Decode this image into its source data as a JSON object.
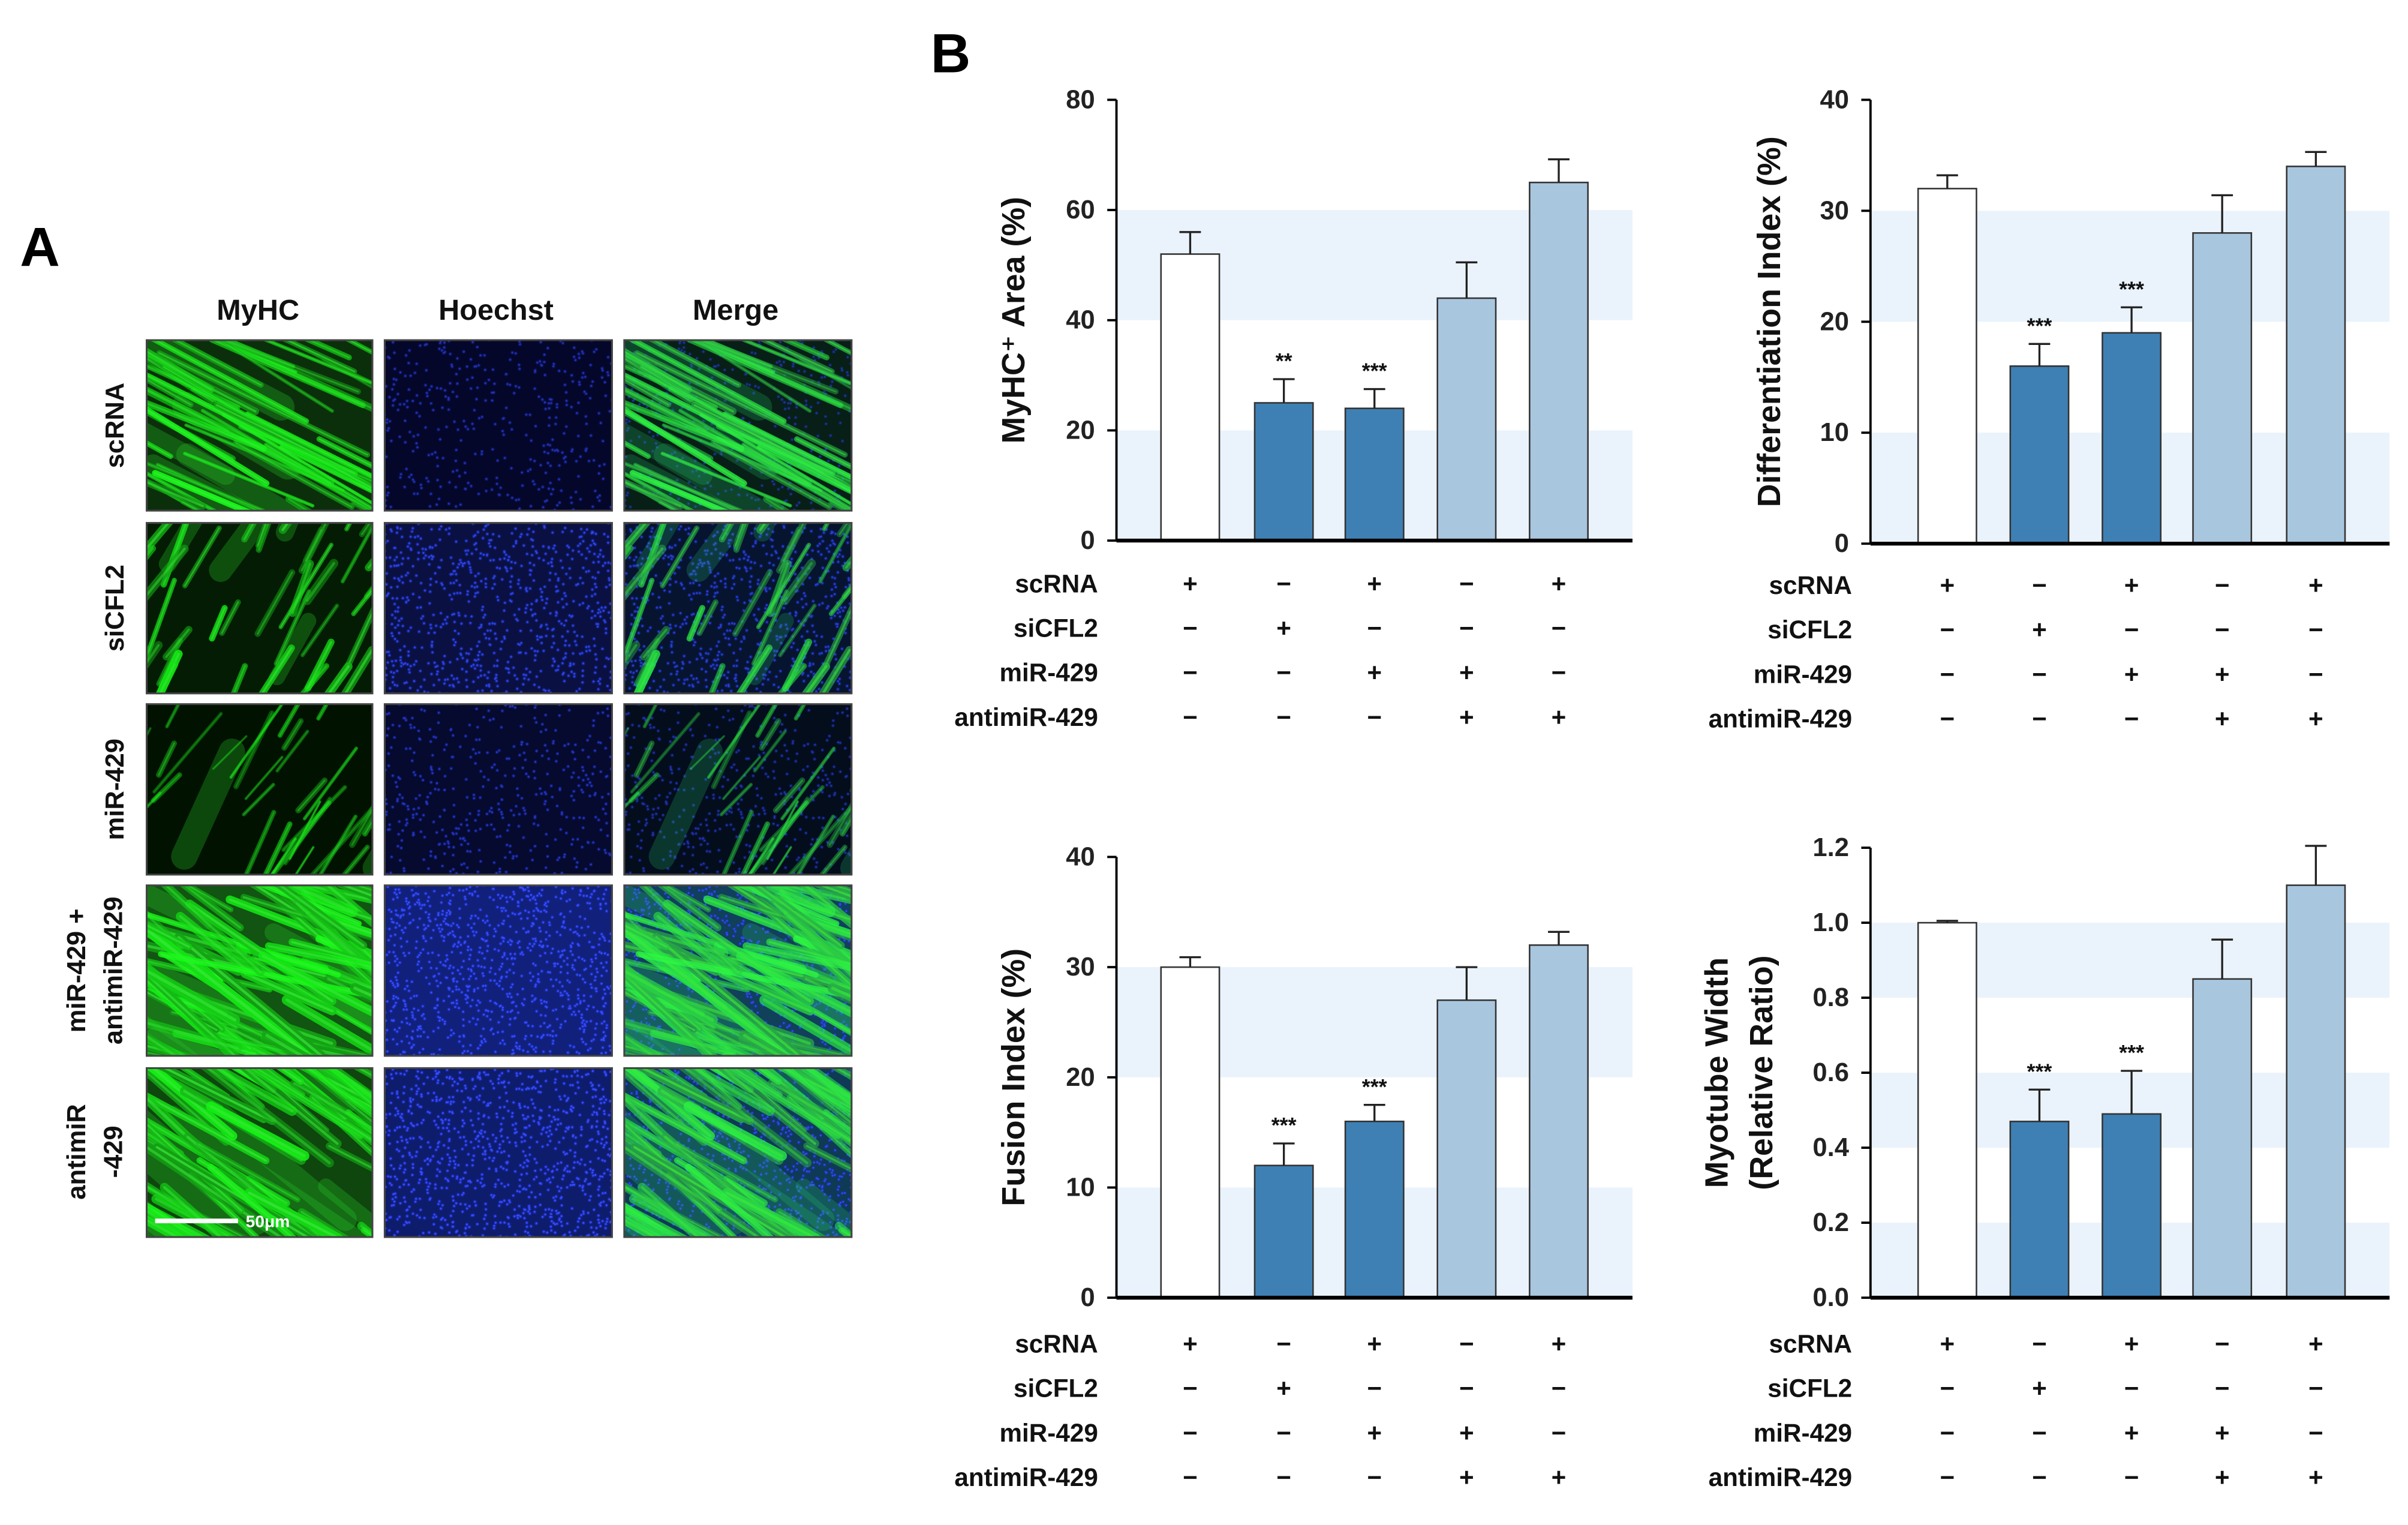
{
  "panel_a": {
    "label": "A",
    "columns": [
      "MyHC",
      "Hoechst",
      "Merge"
    ],
    "rows": [
      {
        "label_lines": [
          "scRNA"
        ]
      },
      {
        "label_lines": [
          "siCFL2"
        ]
      },
      {
        "label_lines": [
          "miR-429"
        ]
      },
      {
        "label_lines": [
          "miR-429 +",
          "antimiR-429"
        ]
      },
      {
        "label_lines": [
          "antimiR",
          "-429"
        ]
      }
    ],
    "scale_bar": "50μm",
    "channel_colors": {
      "MyHC": "#3BE83B",
      "Hoechst": "#3A50FF"
    }
  },
  "panel_b": {
    "label": "B"
  },
  "conditions": {
    "rows": [
      {
        "label": "scRNA",
        "signs": [
          "+",
          "−",
          "+",
          "−",
          "+"
        ]
      },
      {
        "label": "siCFL2",
        "signs": [
          "−",
          "+",
          "−",
          "−",
          "−"
        ]
      },
      {
        "label": "miR-429",
        "signs": [
          "−",
          "−",
          "+",
          "+",
          "−"
        ]
      },
      {
        "label": "antimiR-429",
        "signs": [
          "−",
          "−",
          "−",
          "+",
          "+"
        ]
      }
    ]
  },
  "colors": {
    "band": "#EAF3FB",
    "bar_outline": "#333333",
    "axis": "#000000"
  },
  "chart_data": [
    {
      "type": "bar",
      "ylabel": [
        "MyHC⁺ Area (%)"
      ],
      "ylim": [
        0,
        80
      ],
      "yticks": [
        0,
        20,
        40,
        60,
        80
      ],
      "ytick_labels": [
        "0",
        "20",
        "40",
        "60",
        "80"
      ],
      "values": [
        52,
        25,
        24,
        44,
        65
      ],
      "errors": [
        4,
        4.3,
        3.5,
        6.5,
        4.2
      ],
      "annotations": [
        "",
        "**",
        "***",
        "",
        ""
      ],
      "bar_colors": [
        "#FFFFFF",
        "#3E80B4",
        "#3E80B4",
        "#A9C6DF",
        "#A9C6DF"
      ],
      "shaded_bands": true
    },
    {
      "type": "bar",
      "ylabel": [
        "Differentiation Index (%)"
      ],
      "ylim": [
        0,
        40
      ],
      "yticks": [
        0,
        10,
        20,
        30,
        40
      ],
      "ytick_labels": [
        "0",
        "10",
        "20",
        "30",
        "40"
      ],
      "values": [
        32,
        16,
        19,
        28,
        34
      ],
      "errors": [
        1.2,
        2,
        2.3,
        3.4,
        1.3
      ],
      "annotations": [
        "",
        "***",
        "***",
        "",
        ""
      ],
      "bar_colors": [
        "#FFFFFF",
        "#3E80B4",
        "#3E80B4",
        "#A9C6DF",
        "#A9C6DF"
      ],
      "shaded_bands": true
    },
    {
      "type": "bar",
      "ylabel": [
        "Fusion Index (%)"
      ],
      "ylim": [
        0,
        40
      ],
      "yticks": [
        0,
        10,
        20,
        30,
        40
      ],
      "ytick_labels": [
        "0",
        "10",
        "20",
        "30",
        "40"
      ],
      "values": [
        30,
        12,
        16,
        27,
        32
      ],
      "errors": [
        0.9,
        2,
        1.5,
        3,
        1.2
      ],
      "annotations": [
        "",
        "***",
        "***",
        "",
        ""
      ],
      "bar_colors": [
        "#FFFFFF",
        "#3E80B4",
        "#3E80B4",
        "#A9C6DF",
        "#A9C6DF"
      ],
      "shaded_bands": true
    },
    {
      "type": "bar",
      "ylabel": [
        "Myotube Width",
        "(Relative Ratio)"
      ],
      "ylim": [
        0,
        1.2
      ],
      "yticks": [
        0,
        0.2,
        0.4,
        0.6,
        0.8,
        1.0,
        1.2
      ],
      "ytick_labels": [
        "0.0",
        "0.2",
        "0.4",
        "0.6",
        "0.8",
        "1.0",
        "1.2"
      ],
      "values": [
        1.0,
        0.47,
        0.49,
        0.85,
        1.1
      ],
      "errors": [
        0.005,
        0.085,
        0.115,
        0.105,
        0.105
      ],
      "annotations": [
        "",
        "***",
        "***",
        "",
        ""
      ],
      "bar_colors": [
        "#FFFFFF",
        "#3E80B4",
        "#3E80B4",
        "#A9C6DF",
        "#A9C6DF"
      ],
      "shaded_bands": true
    }
  ]
}
